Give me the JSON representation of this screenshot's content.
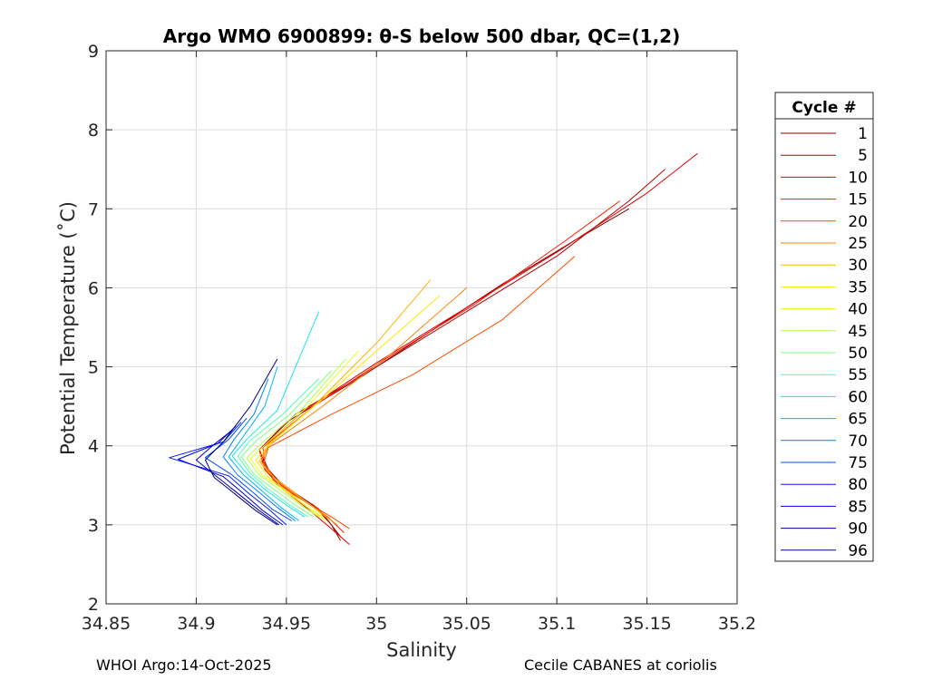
{
  "chart_data": {
    "type": "line",
    "title": "Argo WMO 6900899: θ-S below 500 dbar,  QC=(1,2)",
    "xlabel": "Salinity",
    "ylabel": "Potential Temperature (˚C)",
    "xlim": [
      34.85,
      35.2
    ],
    "ylim": [
      2,
      9
    ],
    "xticks": [
      "34.85",
      "34.9",
      "34.95",
      "35",
      "35.05",
      "35.1",
      "35.15",
      "35.2"
    ],
    "yticks": [
      "2",
      "3",
      "4",
      "5",
      "6",
      "7",
      "8",
      "9"
    ],
    "grid": true,
    "legend": {
      "title": "Cycle #",
      "placement": "right",
      "entries": [
        {
          "label": "1",
          "color": "#800000"
        },
        {
          "label": "5",
          "color": "#b20000"
        },
        {
          "label": "10",
          "color": "#e60000"
        },
        {
          "label": "15",
          "color": "#ff1a00"
        },
        {
          "label": "20",
          "color": "#ff4d00"
        },
        {
          "label": "25",
          "color": "#ff8000"
        },
        {
          "label": "30",
          "color": "#ffb300"
        },
        {
          "label": "35",
          "color": "#ffe600"
        },
        {
          "label": "40",
          "color": "#e6ff1a"
        },
        {
          "label": "45",
          "color": "#b3ff4d"
        },
        {
          "label": "50",
          "color": "#80ff80"
        },
        {
          "label": "55",
          "color": "#4dffb3"
        },
        {
          "label": "60",
          "color": "#1ae6e6"
        },
        {
          "label": "65",
          "color": "#00b3ff"
        },
        {
          "label": "70",
          "color": "#0080ff"
        },
        {
          "label": "75",
          "color": "#004dff"
        },
        {
          "label": "80",
          "color": "#001aff"
        },
        {
          "label": "85",
          "color": "#0000e6"
        },
        {
          "label": "90",
          "color": "#0000b3"
        },
        {
          "label": "96",
          "color": "#000080"
        }
      ]
    },
    "series": [
      {
        "name": "Cycle 1",
        "color": "#800000",
        "x": [
          34.98,
          34.975,
          34.968,
          34.955,
          34.94,
          34.935,
          34.95,
          34.99,
          35.03,
          35.07,
          35.11,
          35.14
        ],
        "y": [
          2.85,
          3.0,
          3.2,
          3.4,
          3.65,
          3.95,
          4.3,
          4.85,
          5.45,
          6.05,
          6.6,
          7.0
        ]
      },
      {
        "name": "Cycle 5",
        "color": "#b20000",
        "x": [
          34.98,
          34.975,
          34.965,
          34.95,
          34.94,
          34.935,
          34.955,
          35.0,
          35.05,
          35.1,
          35.14,
          35.16
        ],
        "y": [
          2.8,
          3.0,
          3.25,
          3.45,
          3.7,
          3.95,
          4.4,
          5.0,
          5.7,
          6.4,
          7.1,
          7.5
        ]
      },
      {
        "name": "Cycle 10",
        "color": "#e60000",
        "x": [
          34.985,
          34.975,
          34.962,
          34.948,
          34.938,
          34.935,
          34.96,
          35.0,
          35.05,
          35.1,
          35.15,
          35.178
        ],
        "y": [
          2.75,
          2.95,
          3.2,
          3.45,
          3.7,
          3.95,
          4.45,
          5.05,
          5.75,
          6.45,
          7.2,
          7.7
        ]
      },
      {
        "name": "Cycle 15",
        "color": "#ff1a00",
        "x": [
          34.982,
          34.973,
          34.96,
          34.947,
          34.938,
          34.937,
          34.965,
          35.005,
          35.055,
          35.105,
          35.135
        ],
        "y": [
          2.9,
          3.1,
          3.3,
          3.5,
          3.75,
          3.98,
          4.5,
          5.1,
          5.8,
          6.6,
          7.1
        ]
      },
      {
        "name": "Cycle 20",
        "color": "#ff4d00",
        "x": [
          34.985,
          34.975,
          34.96,
          34.945,
          34.937,
          34.94,
          34.975,
          35.02,
          35.07,
          35.11
        ],
        "y": [
          2.95,
          3.1,
          3.3,
          3.5,
          3.75,
          3.98,
          4.4,
          4.9,
          5.6,
          6.4
        ]
      },
      {
        "name": "Cycle 25",
        "color": "#ff8000",
        "x": [
          34.978,
          34.97,
          34.957,
          34.945,
          34.936,
          34.94,
          34.97,
          35.01,
          35.05
        ],
        "y": [
          3.0,
          3.15,
          3.35,
          3.55,
          3.8,
          4.0,
          4.5,
          5.2,
          6.0
        ]
      },
      {
        "name": "Cycle 30",
        "color": "#ffb300",
        "x": [
          34.975,
          34.966,
          34.955,
          34.943,
          34.935,
          34.94,
          34.965,
          35.0,
          35.03
        ],
        "y": [
          3.05,
          3.2,
          3.4,
          3.6,
          3.8,
          4.02,
          4.5,
          5.3,
          6.1
        ]
      },
      {
        "name": "Cycle 35",
        "color": "#ffe600",
        "x": [
          34.972,
          34.963,
          34.952,
          34.94,
          34.933,
          34.942,
          34.968,
          35.0,
          35.035
        ],
        "y": [
          3.05,
          3.2,
          3.4,
          3.6,
          3.82,
          4.05,
          4.55,
          5.2,
          5.9
        ]
      },
      {
        "name": "Cycle 40",
        "color": "#e6ff1a",
        "x": [
          34.97,
          34.96,
          34.948,
          34.937,
          34.93,
          34.94,
          34.962,
          34.99
        ],
        "y": [
          3.1,
          3.25,
          3.45,
          3.62,
          3.84,
          4.05,
          4.5,
          5.2
        ]
      },
      {
        "name": "Cycle 45",
        "color": "#b3ff4d",
        "x": [
          34.968,
          34.958,
          34.946,
          34.935,
          34.928,
          34.937,
          34.958,
          34.983
        ],
        "y": [
          3.1,
          3.25,
          3.45,
          3.63,
          3.85,
          4.05,
          4.45,
          5.1
        ]
      },
      {
        "name": "Cycle 50",
        "color": "#80ff80",
        "x": [
          34.965,
          34.955,
          34.943,
          34.932,
          34.925,
          34.933,
          34.952,
          34.975
        ],
        "y": [
          3.1,
          3.25,
          3.45,
          3.64,
          3.86,
          4.06,
          4.4,
          4.95
        ]
      },
      {
        "name": "Cycle 55",
        "color": "#4dffb3",
        "x": [
          34.962,
          34.952,
          34.94,
          34.93,
          34.923,
          34.93,
          34.948,
          34.968
        ],
        "y": [
          3.1,
          3.25,
          3.45,
          3.65,
          3.87,
          4.07,
          4.4,
          4.85
        ]
      },
      {
        "name": "Cycle 60",
        "color": "#1ae6e6",
        "x": [
          34.96,
          34.95,
          34.938,
          34.928,
          34.92,
          34.928,
          34.945,
          34.968
        ],
        "y": [
          3.1,
          3.25,
          3.45,
          3.65,
          3.87,
          4.08,
          4.45,
          5.7
        ]
      },
      {
        "name": "Cycle 65",
        "color": "#00b3ff",
        "x": [
          34.957,
          34.947,
          34.936,
          34.926,
          34.918,
          34.925,
          34.938,
          34.945
        ],
        "y": [
          3.05,
          3.22,
          3.44,
          3.64,
          3.86,
          4.08,
          4.5,
          5.0
        ]
      },
      {
        "name": "Cycle 70",
        "color": "#0080ff",
        "x": [
          34.955,
          34.945,
          34.934,
          34.923,
          34.915,
          34.921,
          34.932,
          34.94
        ],
        "y": [
          3.05,
          3.22,
          3.43,
          3.63,
          3.86,
          4.08,
          4.4,
          4.85
        ]
      },
      {
        "name": "Cycle 75",
        "color": "#004dff",
        "x": [
          34.953,
          34.942,
          34.931,
          34.92,
          34.905,
          34.918,
          34.928
        ],
        "y": [
          3.05,
          3.2,
          3.42,
          3.63,
          3.85,
          4.08,
          4.35
        ]
      },
      {
        "name": "Cycle 80",
        "color": "#001aff",
        "x": [
          34.95,
          34.94,
          34.929,
          34.918,
          34.885,
          34.915,
          34.925
        ],
        "y": [
          3.0,
          3.2,
          3.4,
          3.62,
          3.85,
          4.05,
          4.3
        ]
      },
      {
        "name": "Cycle 85",
        "color": "#0000e6",
        "x": [
          34.948,
          34.937,
          34.926,
          34.915,
          34.89,
          34.912,
          34.922
        ],
        "y": [
          3.0,
          3.18,
          3.4,
          3.61,
          3.83,
          4.03,
          4.25
        ]
      },
      {
        "name": "Cycle 90",
        "color": "#0000b3",
        "x": [
          34.946,
          34.935,
          34.924,
          34.912,
          34.9,
          34.91,
          34.92
        ],
        "y": [
          3.0,
          3.18,
          3.38,
          3.6,
          3.82,
          4.02,
          4.2
        ]
      },
      {
        "name": "Cycle 96",
        "color": "#000080",
        "x": [
          34.945,
          34.933,
          34.922,
          34.91,
          34.905,
          34.915,
          34.93,
          34.945
        ],
        "y": [
          3.0,
          3.18,
          3.38,
          3.6,
          3.82,
          4.05,
          4.5,
          5.1
        ]
      }
    ]
  },
  "footer": {
    "left": "WHOI Argo:14-Oct-2025",
    "right": "Cecile CABANES at coriolis"
  }
}
